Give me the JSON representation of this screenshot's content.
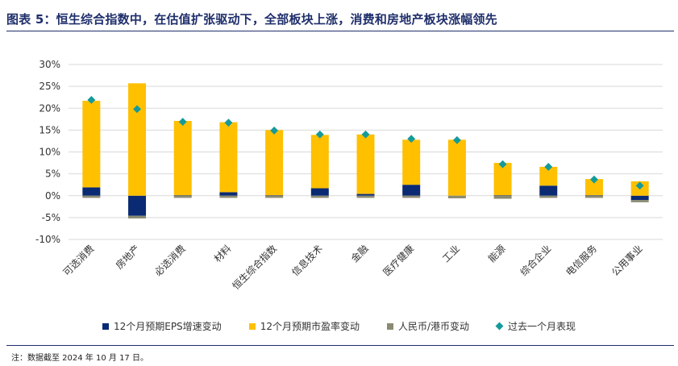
{
  "title": "图表 5：恒生综合指数中，在估值扩张驱动下，全部板块上涨，消费和房地产板块涨幅领先",
  "note": "注：数据截至 2024 年 10 月 17 日。",
  "colors": {
    "eps": "#0a2a73",
    "pe": "#ffc000",
    "fx": "#8b8b72",
    "total": "#159a9c",
    "title": "#1f2f6b",
    "grid": "#d9d9d9"
  },
  "chart_data": {
    "type": "bar",
    "stacked": true,
    "categories": [
      "可选消费",
      "房地产",
      "必选消费",
      "材料",
      "恒生综合指数",
      "信息技术",
      "金融",
      "医疗健康",
      "工业",
      "能源",
      "综合企业",
      "电信服务",
      "公用事业"
    ],
    "ylim": [
      -10,
      30
    ],
    "yticks": [
      "-10%",
      "-5%",
      "0%",
      "5%",
      "10%",
      "15%",
      "20%",
      "25%",
      "30%"
    ],
    "ytick_values": [
      -10,
      -5,
      0,
      5,
      10,
      15,
      20,
      25,
      30
    ],
    "grid": true,
    "legend_position": "bottom",
    "series": [
      {
        "name": "12个月预期EPS增速变动",
        "kind": "bar",
        "color_key": "eps",
        "values": [
          1.9,
          -4.6,
          0.1,
          0.8,
          0.1,
          1.7,
          0.4,
          2.5,
          0.0,
          0.1,
          2.3,
          0.1,
          -1.0
        ]
      },
      {
        "name": "12个月预期市盈率变动",
        "kind": "bar",
        "color_key": "pe",
        "values": [
          19.8,
          25.7,
          17.0,
          16.0,
          14.9,
          12.2,
          13.6,
          10.3,
          12.8,
          7.4,
          4.3,
          3.7,
          3.3
        ]
      },
      {
        "name": "人民币/港币变动",
        "kind": "bar",
        "color_key": "fx",
        "values": [
          -0.5,
          -0.6,
          -0.5,
          -0.5,
          -0.5,
          -0.5,
          -0.5,
          -0.5,
          -0.6,
          -0.7,
          -0.5,
          -0.5,
          -0.5
        ]
      },
      {
        "name": "过去一个月表现",
        "kind": "marker",
        "color_key": "total",
        "values": [
          21.9,
          19.8,
          16.9,
          16.7,
          14.9,
          14.0,
          14.0,
          13.0,
          12.7,
          7.2,
          6.6,
          3.7,
          2.3
        ]
      }
    ]
  }
}
